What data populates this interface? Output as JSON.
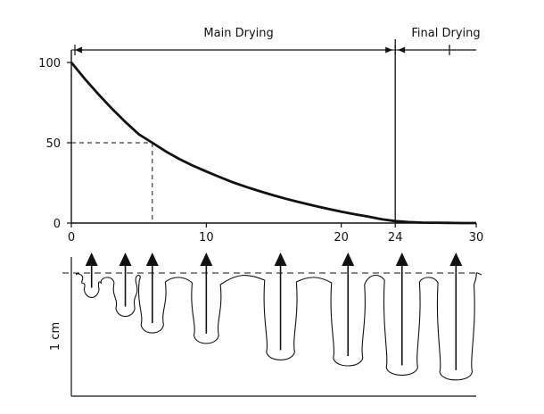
{
  "chart_data": [
    {
      "type": "line",
      "title": "",
      "xlabel": "",
      "ylabel": "",
      "xlim": [
        0,
        30
      ],
      "ylim": [
        0,
        100
      ],
      "x_ticks": [
        0,
        10,
        20,
        24,
        30
      ],
      "y_ticks": [
        0,
        50,
        100
      ],
      "grid": false,
      "series": [
        {
          "x": [
            0,
            1,
            2,
            3,
            4,
            5,
            6,
            7,
            8,
            9,
            10,
            11,
            12,
            13,
            14,
            15,
            16,
            17,
            18,
            19,
            20,
            21,
            22,
            23,
            24,
            25,
            26,
            27,
            28,
            29,
            30
          ],
          "y": [
            100,
            89.8,
            80.2,
            71.3,
            63,
            55.3,
            50,
            44.6,
            39.9,
            35.8,
            32.1,
            28.6,
            25.3,
            22.4,
            19.7,
            17.2,
            14.9,
            12.8,
            10.8,
            8.9,
            7.1,
            5.5,
            4,
            2.4,
            1.2,
            0.6,
            0.3,
            0.2,
            0.1,
            0,
            0
          ]
        }
      ],
      "reference": {
        "x": 6,
        "y": 50
      },
      "phases": [
        {
          "label": "Main Drying",
          "from": 0,
          "to": 24
        },
        {
          "label": "Final Drying",
          "from": 24,
          "to": 30
        }
      ]
    },
    {
      "type": "diagram",
      "scale_label": "1 cm",
      "pores": [
        {
          "x": 1.5,
          "depth": 0.17
        },
        {
          "x": 4,
          "depth": 0.33
        },
        {
          "x": 6,
          "depth": 0.47
        },
        {
          "x": 10,
          "depth": 0.56
        },
        {
          "x": 15.5,
          "depth": 0.7
        },
        {
          "x": 20.5,
          "depth": 0.75
        },
        {
          "x": 24.5,
          "depth": 0.83
        },
        {
          "x": 28.5,
          "depth": 0.87
        }
      ]
    }
  ]
}
